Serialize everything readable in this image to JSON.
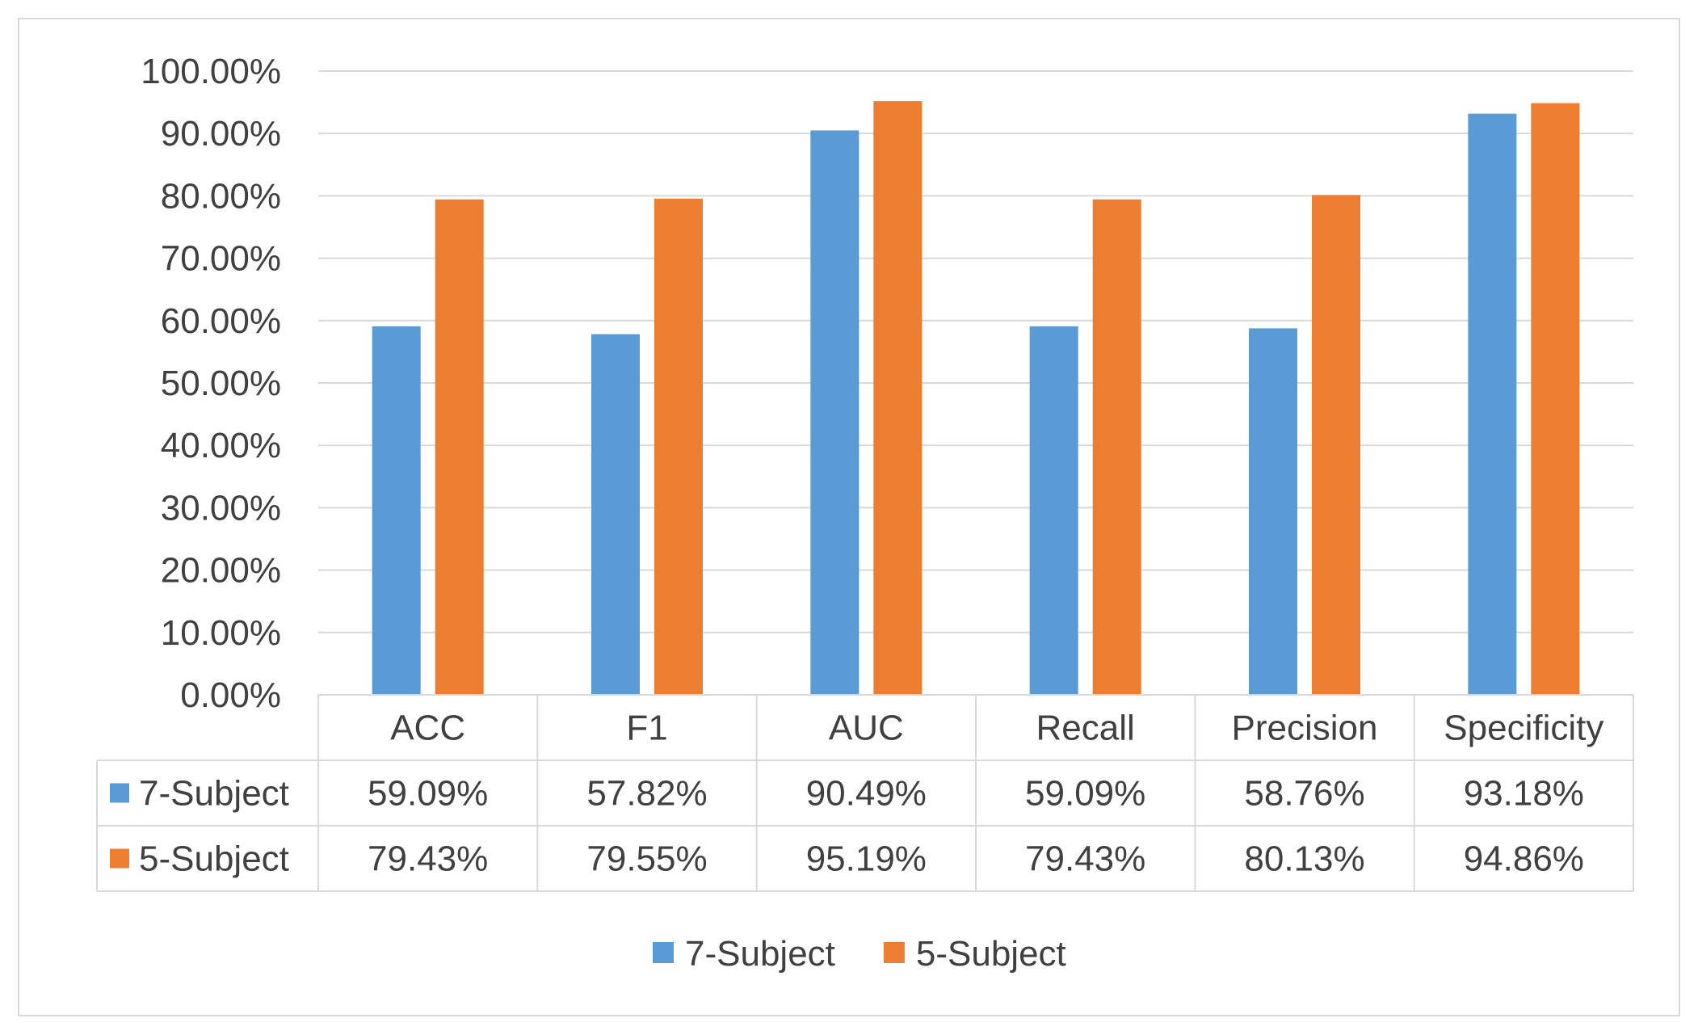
{
  "chart_data": {
    "type": "bar",
    "categories": [
      "ACC",
      "F1",
      "AUC",
      "Recall",
      "Precision",
      "Specificity"
    ],
    "series": [
      {
        "name": "7-Subject",
        "values": [
          59.09,
          57.82,
          90.49,
          59.09,
          58.76,
          93.18
        ],
        "labels": [
          "59.09%",
          "57.82%",
          "90.49%",
          "59.09%",
          "58.76%",
          "93.18%"
        ],
        "color": "#5b9bd5"
      },
      {
        "name": "5-Subject",
        "values": [
          79.43,
          79.55,
          95.19,
          79.43,
          80.13,
          94.86
        ],
        "labels": [
          "79.43%",
          "79.55%",
          "95.19%",
          "79.43%",
          "80.13%",
          "94.86%"
        ],
        "color": "#ed7d31"
      }
    ],
    "ylim": [
      0,
      100
    ],
    "yticks": [
      "0.00%",
      "10.00%",
      "20.00%",
      "30.00%",
      "40.00%",
      "50.00%",
      "60.00%",
      "70.00%",
      "80.00%",
      "90.00%",
      "100.00%"
    ],
    "grid": true,
    "data_table": true,
    "legend_position": "bottom",
    "gridline_color": "#d9d9d9",
    "text_color": "#404040"
  }
}
